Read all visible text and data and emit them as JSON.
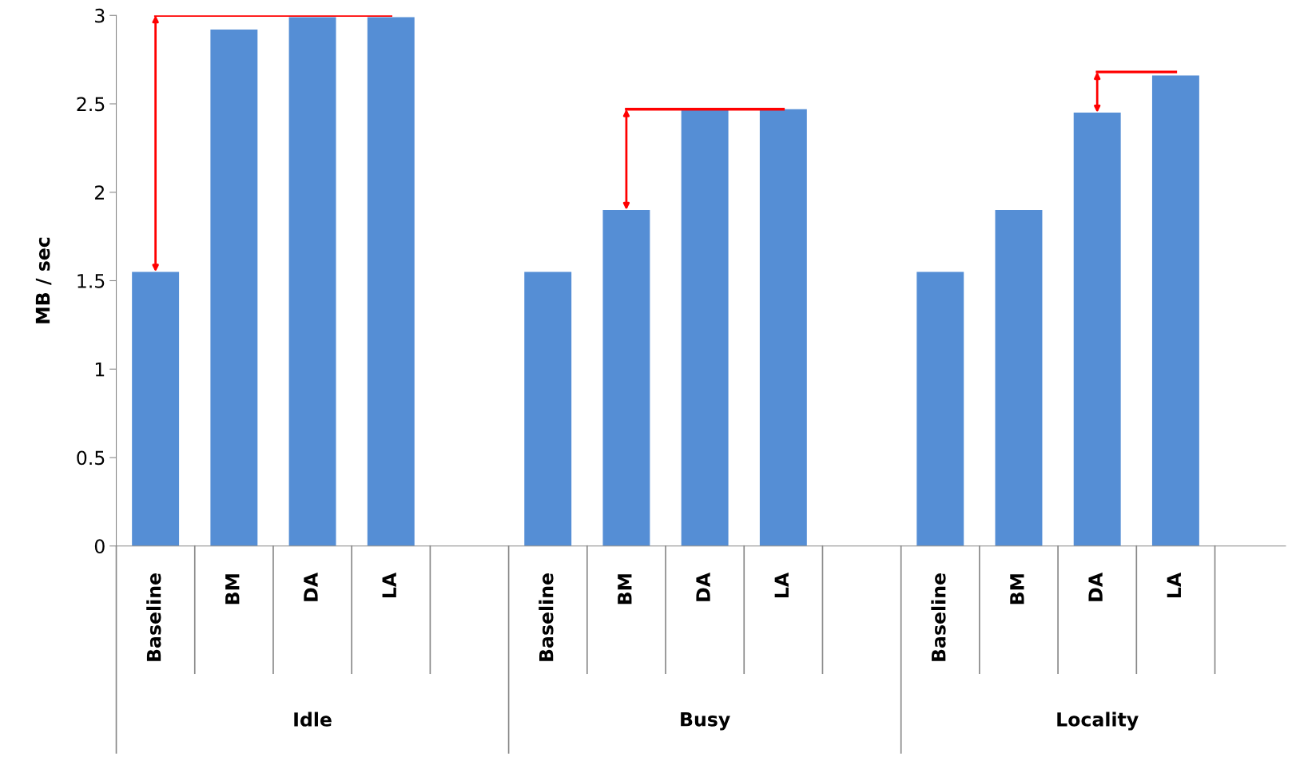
{
  "chart_data": {
    "type": "bar",
    "ylabel": "MB / sec",
    "categories": [
      "Baseline",
      "BM",
      "DA",
      "LA",
      null,
      "Baseline",
      "BM",
      "DA",
      "LA",
      null,
      "Baseline",
      "BM",
      "DA",
      "LA",
      null
    ],
    "series": [
      {
        "color": "#558ed5",
        "values": [
          1.55,
          2.92,
          2.99,
          2.99,
          null,
          1.55,
          1.9,
          2.47,
          2.47,
          null,
          1.55,
          1.9,
          2.45,
          2.66,
          null
        ]
      },
      {
        "type": "line",
        "color": "#ff0000",
        "values": [
          3.0,
          3.0,
          3.0,
          3.0,
          null,
          null,
          null,
          null,
          null,
          null,
          null,
          null,
          null,
          null,
          null
        ]
      },
      {
        "type": "line",
        "color": "#ff0000",
        "values": [
          null,
          null,
          null,
          null,
          null,
          null,
          2.47,
          2.47,
          2.47,
          null,
          null,
          null,
          null,
          null,
          null
        ]
      },
      {
        "type": "line",
        "color": "#ff0000",
        "values": [
          null,
          null,
          null,
          null,
          null,
          null,
          null,
          null,
          null,
          null,
          null,
          null,
          2.68,
          2.68,
          null
        ]
      }
    ],
    "annotations": [
      "Idle",
      "Busy",
      "Locality"
    ],
    "ylim": [
      0,
      3
    ],
    "yticks": [
      0,
      0.5,
      1,
      1.5,
      2,
      2.5,
      3
    ],
    "grid": false,
    "legend": false
  }
}
